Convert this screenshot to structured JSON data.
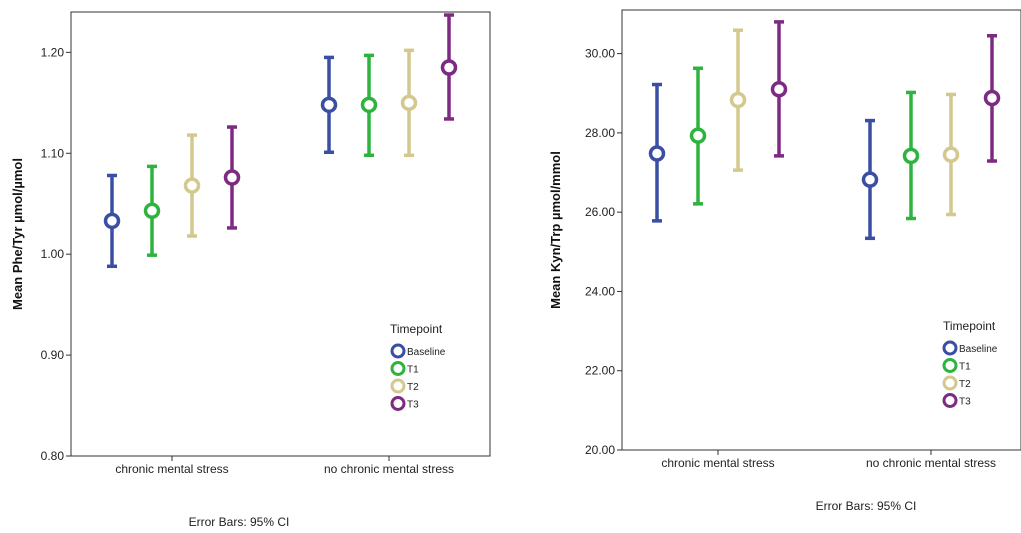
{
  "footnote": "Error Bars: 95% CI",
  "legend_title": "Timepoint",
  "colors": {
    "Baseline": "#3a4fa3",
    "T1": "#2fb33f",
    "T2": "#d3c88e",
    "T3": "#7d2a82"
  },
  "chart_data": [
    {
      "type": "scatter",
      "subtype": "error-bar",
      "ylabel": "Mean Phe/Tyr µmol/µmol",
      "xlabel": "",
      "categories": [
        "chronic mental stress",
        "no chronic mental stress"
      ],
      "ylim": [
        0.8,
        1.24
      ],
      "yticks": [
        0.8,
        0.9,
        1.0,
        1.1,
        1.2
      ],
      "ytick_labels": [
        "0.80",
        "0.90",
        "1.00",
        "1.10",
        "1.20"
      ],
      "grid": false,
      "legend_position": "bottom-right",
      "series": [
        {
          "name": "Baseline",
          "values": [
            1.033,
            1.148
          ],
          "ci_low": [
            0.988,
            1.101
          ],
          "ci_high": [
            1.078,
            1.195
          ]
        },
        {
          "name": "T1",
          "values": [
            1.043,
            1.148
          ],
          "ci_low": [
            0.999,
            1.098
          ],
          "ci_high": [
            1.087,
            1.197
          ]
        },
        {
          "name": "T2",
          "values": [
            1.068,
            1.15
          ],
          "ci_low": [
            1.018,
            1.098
          ],
          "ci_high": [
            1.118,
            1.202
          ]
        },
        {
          "name": "T3",
          "values": [
            1.076,
            1.185
          ],
          "ci_low": [
            1.026,
            1.134
          ],
          "ci_high": [
            1.126,
            1.237
          ]
        }
      ]
    },
    {
      "type": "scatter",
      "subtype": "error-bar",
      "ylabel": "Mean Kyn/Trp µmol/mmol",
      "xlabel": "",
      "categories": [
        "chronic mental stress",
        "no chronic mental stress"
      ],
      "ylim": [
        20.0,
        31.1
      ],
      "yticks": [
        20,
        22,
        24,
        26,
        28,
        30
      ],
      "ytick_labels": [
        "20.00",
        "22.00",
        "24.00",
        "26.00",
        "28.00",
        "30.00"
      ],
      "grid": false,
      "legend_position": "bottom-right",
      "series": [
        {
          "name": "Baseline",
          "values": [
            27.48,
            26.82
          ],
          "ci_low": [
            25.78,
            25.34
          ],
          "ci_high": [
            29.22,
            28.31
          ]
        },
        {
          "name": "T1",
          "values": [
            27.93,
            27.42
          ],
          "ci_low": [
            26.21,
            25.84
          ],
          "ci_high": [
            29.63,
            29.02
          ]
        },
        {
          "name": "T2",
          "values": [
            28.83,
            27.45
          ],
          "ci_low": [
            27.06,
            25.94
          ],
          "ci_high": [
            30.59,
            28.97
          ]
        },
        {
          "name": "T3",
          "values": [
            29.1,
            28.88
          ],
          "ci_low": [
            27.42,
            27.29
          ],
          "ci_high": [
            30.8,
            30.45
          ]
        }
      ]
    }
  ]
}
